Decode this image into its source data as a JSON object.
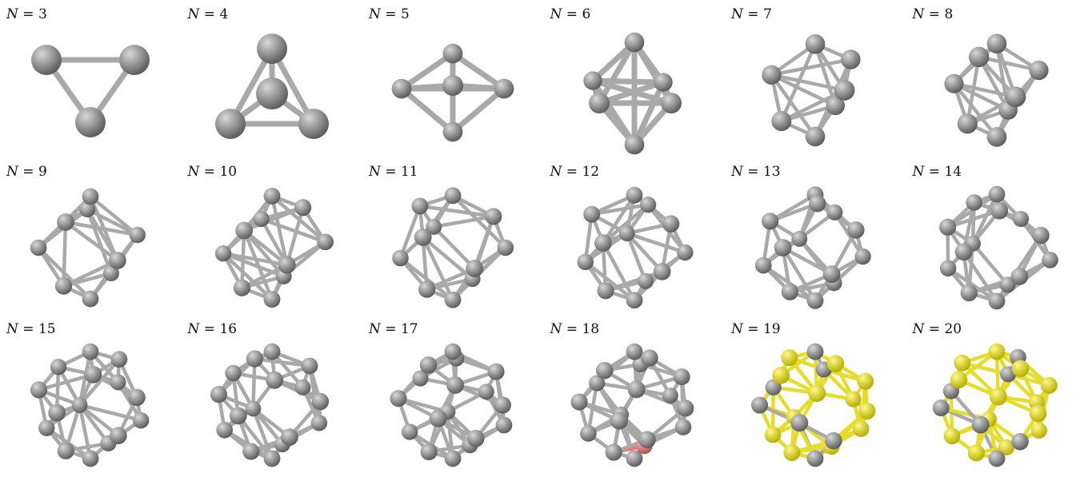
{
  "figure": {
    "variable": "N",
    "equals": "=",
    "colors": {
      "atom_gray": "#8c8c8c",
      "bond_gray": "#a9a9a9",
      "atom_yellow": "#e6dc2c",
      "atom_red": "#e07a7a"
    },
    "panels": [
      {
        "n": "3",
        "atoms": 3,
        "style": "gray"
      },
      {
        "n": "4",
        "atoms": 4,
        "style": "gray"
      },
      {
        "n": "5",
        "atoms": 5,
        "style": "gray"
      },
      {
        "n": "6",
        "atoms": 6,
        "style": "gray"
      },
      {
        "n": "7",
        "atoms": 7,
        "style": "gray"
      },
      {
        "n": "8",
        "atoms": 8,
        "style": "gray"
      },
      {
        "n": "9",
        "atoms": 9,
        "style": "gray"
      },
      {
        "n": "10",
        "atoms": 10,
        "style": "gray"
      },
      {
        "n": "11",
        "atoms": 11,
        "style": "gray"
      },
      {
        "n": "12",
        "atoms": 12,
        "style": "gray"
      },
      {
        "n": "13",
        "atoms": 13,
        "style": "gray"
      },
      {
        "n": "14",
        "atoms": 14,
        "style": "gray"
      },
      {
        "n": "15",
        "atoms": 15,
        "style": "gray"
      },
      {
        "n": "16",
        "atoms": 16,
        "style": "gray"
      },
      {
        "n": "17",
        "atoms": 17,
        "style": "gray"
      },
      {
        "n": "18",
        "atoms": 18,
        "style": "gray-red"
      },
      {
        "n": "19",
        "atoms": 19,
        "style": "yellow"
      },
      {
        "n": "20",
        "atoms": 20,
        "style": "yellow"
      }
    ]
  }
}
